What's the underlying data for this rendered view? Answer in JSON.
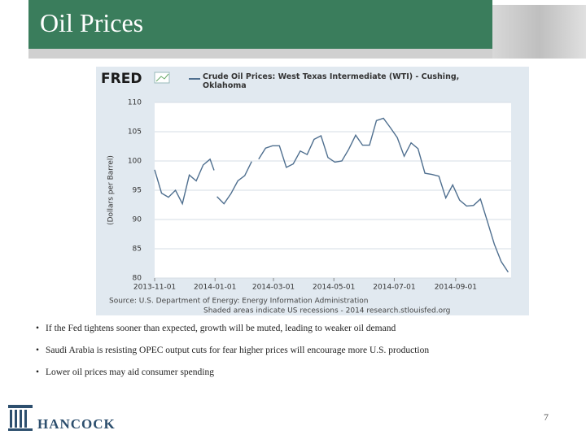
{
  "slide": {
    "title": "Oil Prices",
    "bullets": [
      "If the Fed tightens sooner than expected, growth will be muted, leading to weaker oil demand",
      "Saudi Arabia is resisting OPEC output cuts for fear higher prices will encourage more U.S. production",
      "Lower oil prices may aid consumer spending"
    ],
    "logo": "HANCOCK",
    "page_number": "7"
  },
  "chart_data": {
    "type": "line",
    "brand": "FRED",
    "title": "Crude Oil Prices: West Texas Intermediate (WTI) - Cushing, Oklahoma",
    "y_label": "(Dollars per Barrel)",
    "source": "Source: U.S. Department of Energy: Energy Information Administration",
    "note": "Shaded areas indicate US recessions - 2014 research.stlouisfed.org",
    "x": [
      "2013-11-01",
      "2013-11-08",
      "2013-11-15",
      "2013-11-22",
      "2013-11-29",
      "2013-12-06",
      "2013-12-13",
      "2013-12-20",
      "2013-12-27",
      "2013-12-31",
      "2014-01-01",
      "2014-01-03",
      "2014-01-10",
      "2014-01-17",
      "2014-01-24",
      "2014-01-31",
      "2014-02-07",
      "2014-02-10",
      "2014-02-14",
      "2014-02-21",
      "2014-02-28",
      "2014-03-07",
      "2014-03-14",
      "2014-03-21",
      "2014-03-28",
      "2014-04-04",
      "2014-04-11",
      "2014-04-18",
      "2014-04-25",
      "2014-05-02",
      "2014-05-09",
      "2014-05-16",
      "2014-05-23",
      "2014-05-30",
      "2014-06-06",
      "2014-06-13",
      "2014-06-20",
      "2014-06-27",
      "2014-07-04",
      "2014-07-11",
      "2014-07-18",
      "2014-07-25",
      "2014-08-01",
      "2014-08-08",
      "2014-08-15",
      "2014-08-22",
      "2014-08-29",
      "2014-09-05",
      "2014-09-12",
      "2014-09-19",
      "2014-09-26",
      "2014-10-03",
      "2014-10-10",
      "2014-10-17",
      "2014-10-24"
    ],
    "series": [
      {
        "name": "Crude Oil Prices: West Texas Intermediate (WTI) - Cushing, Oklahoma",
        "color": "#4f6f8f",
        "values": [
          98.5,
          94.5,
          93.8,
          95.0,
          92.7,
          97.6,
          96.6,
          99.3,
          100.3,
          98.4,
          null,
          93.9,
          92.7,
          94.4,
          96.6,
          97.5,
          99.9,
          null,
          100.3,
          102.2,
          102.6,
          102.6,
          98.9,
          99.5,
          101.7,
          101.1,
          103.7,
          104.3,
          100.6,
          99.8,
          100.0,
          102.0,
          104.4,
          102.7,
          102.7,
          106.9,
          107.3,
          105.7,
          104.0,
          100.8,
          103.1,
          102.1,
          97.9,
          97.7,
          97.4,
          93.7,
          95.9,
          93.3,
          92.3,
          92.4,
          93.5,
          89.7,
          85.8,
          82.8,
          81.0
        ]
      }
    ],
    "xlim": [
      "2013-11-01",
      "2014-10-27"
    ],
    "xticks": [
      "2013-11-01",
      "2014-01-01",
      "2014-03-01",
      "2014-05-01",
      "2014-07-01",
      "2014-09-01"
    ],
    "ylim": [
      80,
      110
    ],
    "yticks": [
      80,
      85,
      90,
      95,
      100,
      105,
      110
    ],
    "grid": true
  }
}
